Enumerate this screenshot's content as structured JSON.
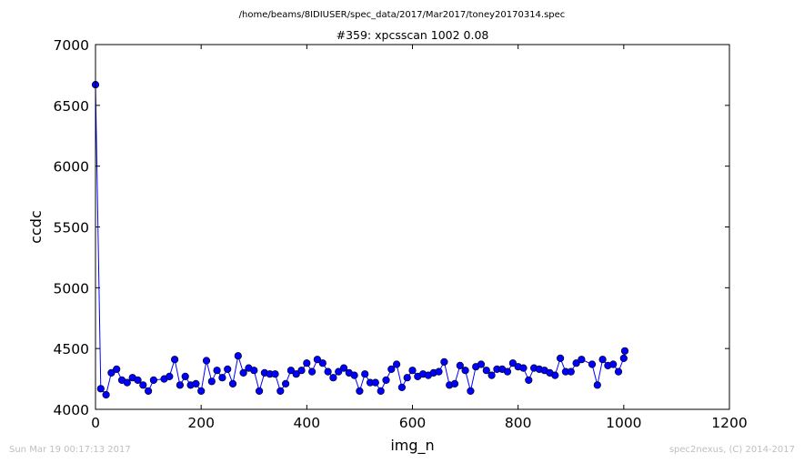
{
  "footer": {
    "timestamp": "Sun Mar 19 00:17:13 2017",
    "credit": "spec2nexus, (C) 2014-2017"
  },
  "chart_data": {
    "type": "line",
    "suptitle": "/home/beams/8IDIUSER/spec_data/2017/Mar2017/toney20170314.spec",
    "title": "#359: xpcsscan 1002 0.08",
    "xlabel": "img_n",
    "ylabel": "ccdc",
    "xlim": [
      0,
      1200
    ],
    "ylim": [
      4000,
      7000
    ],
    "xticks": [
      0,
      200,
      400,
      600,
      800,
      1000,
      1200
    ],
    "yticks": [
      4000,
      4500,
      5000,
      5500,
      6000,
      6500,
      7000
    ],
    "grid": false,
    "legend": "none",
    "color": "#0000ff",
    "series": [
      {
        "x": [
          0,
          10,
          20,
          30,
          40,
          50,
          60,
          70,
          80,
          90,
          100,
          110,
          130,
          140,
          150,
          160,
          170,
          180,
          190,
          200,
          210,
          220,
          230,
          240,
          250,
          260,
          270,
          280,
          290,
          300,
          310,
          320,
          330,
          340,
          350,
          360,
          370,
          380,
          390,
          400,
          410,
          420,
          430,
          440,
          450,
          460,
          470,
          480,
          490,
          500,
          510,
          520,
          530,
          540,
          550,
          560,
          570,
          580,
          590,
          600,
          610,
          620,
          630,
          640,
          650,
          660,
          670,
          680,
          690,
          700,
          710,
          720,
          730,
          740,
          750,
          760,
          770,
          780,
          790,
          800,
          810,
          820,
          830,
          840,
          850,
          860,
          870,
          880,
          890,
          900,
          910,
          920,
          940,
          950,
          960,
          970,
          980,
          990,
          1000,
          1002
        ],
        "y": [
          6670,
          4170,
          4120,
          4300,
          4330,
          4240,
          4220,
          4260,
          4240,
          4200,
          4150,
          4240,
          4250,
          4270,
          4410,
          4200,
          4270,
          4200,
          4210,
          4150,
          4400,
          4230,
          4320,
          4260,
          4330,
          4210,
          4440,
          4300,
          4340,
          4320,
          4150,
          4300,
          4290,
          4290,
          4150,
          4210,
          4320,
          4290,
          4320,
          4380,
          4310,
          4410,
          4380,
          4310,
          4260,
          4310,
          4340,
          4300,
          4280,
          4150,
          4290,
          4220,
          4220,
          4150,
          4240,
          4330,
          4370,
          4180,
          4260,
          4320,
          4270,
          4290,
          4280,
          4300,
          4310,
          4390,
          4200,
          4210,
          4360,
          4320,
          4150,
          4350,
          4370,
          4320,
          4280,
          4330,
          4330,
          4310,
          4380,
          4350,
          4340,
          4240,
          4340,
          4330,
          4320,
          4300,
          4280,
          4420,
          4310,
          4310,
          4380,
          4410,
          4370,
          4200,
          4410,
          4360,
          4370,
          4310,
          4420,
          4480
        ]
      }
    ]
  }
}
